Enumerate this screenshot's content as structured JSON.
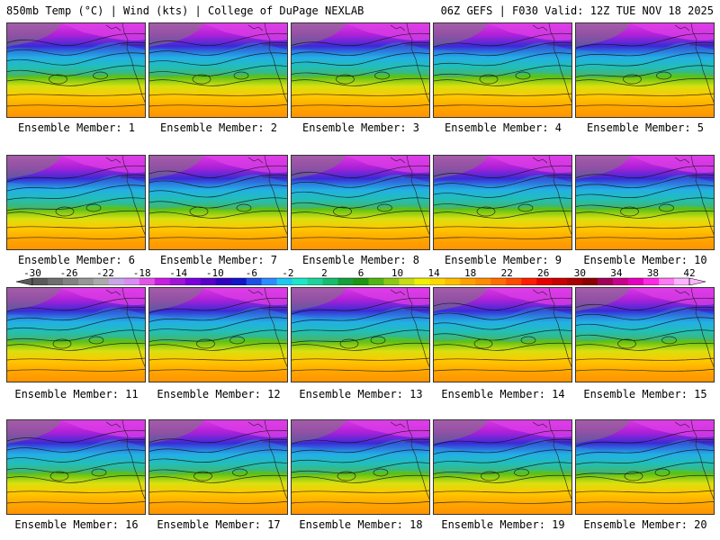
{
  "header": {
    "left": "850mb Temp (°C) | Wind (kts) | College of DuPage NEXLAB",
    "right": "06Z GEFS | F030 Valid: 12Z TUE NOV 18 2025"
  },
  "member_prefix": "Ensemble Member:",
  "members": [
    {
      "label": "Ensemble Member: 1"
    },
    {
      "label": "Ensemble Member: 2"
    },
    {
      "label": "Ensemble Member: 3"
    },
    {
      "label": "Ensemble Member: 4"
    },
    {
      "label": "Ensemble Member: 5"
    },
    {
      "label": "Ensemble Member: 6"
    },
    {
      "label": "Ensemble Member: 7"
    },
    {
      "label": "Ensemble Member: 8"
    },
    {
      "label": "Ensemble Member: 9"
    },
    {
      "label": "Ensemble Member: 10"
    },
    {
      "label": "Ensemble Member: 11"
    },
    {
      "label": "Ensemble Member: 12"
    },
    {
      "label": "Ensemble Member: 13"
    },
    {
      "label": "Ensemble Member: 14"
    },
    {
      "label": "Ensemble Member: 15"
    },
    {
      "label": "Ensemble Member: 16"
    },
    {
      "label": "Ensemble Member: 17"
    },
    {
      "label": "Ensemble Member: 18"
    },
    {
      "label": "Ensemble Member: 19"
    },
    {
      "label": "Ensemble Member: 20"
    }
  ],
  "colorbar": {
    "ticks": [
      "-30",
      "-26",
      "-22",
      "-18",
      "-14",
      "-10",
      "-6",
      "-2",
      "2",
      "6",
      "10",
      "14",
      "18",
      "22",
      "26",
      "30",
      "34",
      "38",
      "42"
    ],
    "colors": [
      "#5a5a5a",
      "#6e6e6e",
      "#828282",
      "#969696",
      "#aaaaaa",
      "#c7a6e6",
      "#d98cf2",
      "#e055e8",
      "#c81ee0",
      "#a014d8",
      "#7a00dc",
      "#5a00c8",
      "#3200be",
      "#1414c8",
      "#1e50e6",
      "#2d8cff",
      "#1ec8f0",
      "#1ee6c8",
      "#1ed29b",
      "#14be6e",
      "#14a03c",
      "#1e9614",
      "#50b414",
      "#8cc814",
      "#c8dc14",
      "#f0f000",
      "#ffd700",
      "#ffbe00",
      "#ffa000",
      "#ff8c00",
      "#ff6e00",
      "#ff4b00",
      "#ff1e00",
      "#e60000",
      "#c80000",
      "#aa0000",
      "#8c0000",
      "#a0005a",
      "#c8008c",
      "#e600be",
      "#ff28e6",
      "#ff78f5",
      "#ffb4ff"
    ]
  }
}
